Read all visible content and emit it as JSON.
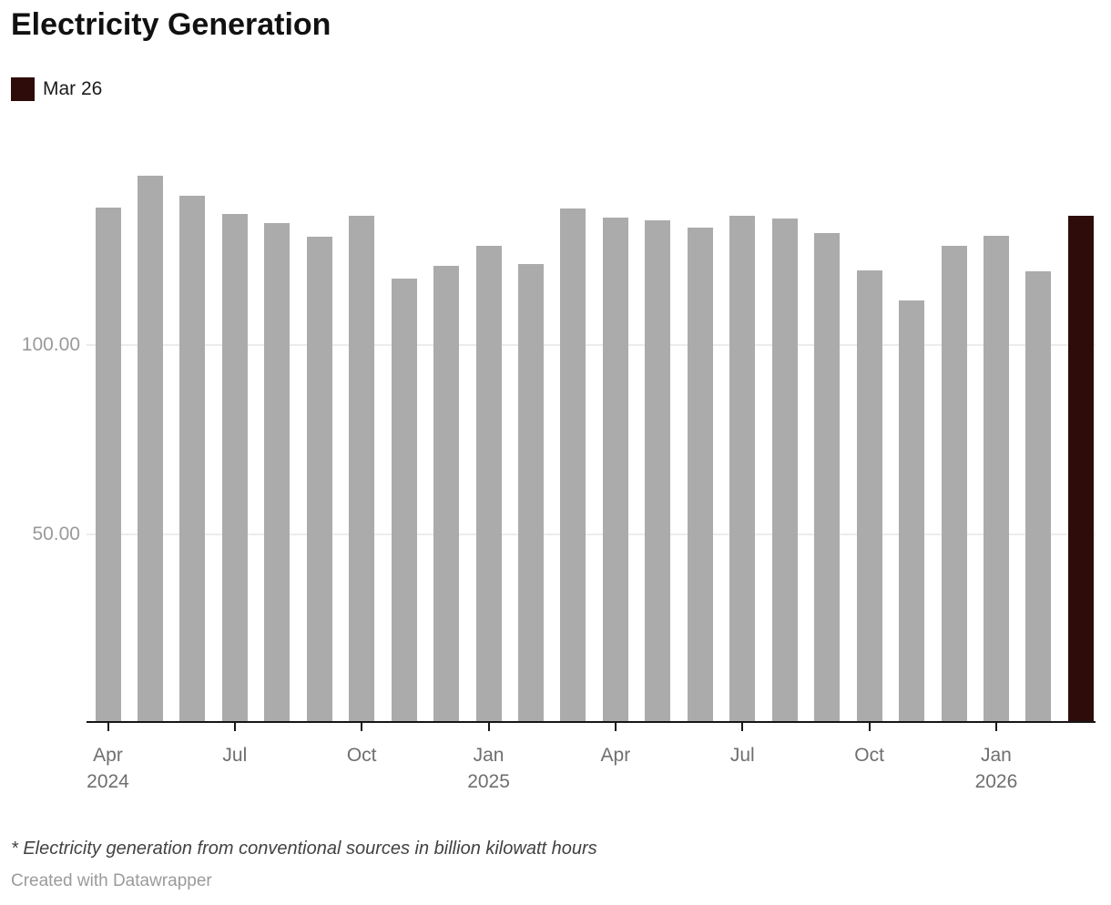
{
  "title": "Electricity Generation",
  "legend": {
    "label": "Mar 26"
  },
  "footnote": "* Electricity generation from conventional sources in billion kilowatt hours",
  "attribution": "Created with Datawrapper",
  "colors": {
    "bar": "#ababab",
    "highlight": "#2e0c09",
    "gridline": "#ececec",
    "axis": "#161616",
    "y_label": "#9a9a9a",
    "x_label": "#6f6f6f"
  },
  "chart_data": {
    "type": "bar",
    "title": "Electricity Generation",
    "categories": [
      "Apr 2024",
      "May 2024",
      "Jun 2024",
      "Jul 2024",
      "Aug 2024",
      "Sep 2024",
      "Oct 2024",
      "Nov 2024",
      "Dec 2024",
      "Jan 2025",
      "Feb 2025",
      "Mar 2025",
      "Apr 2025",
      "May 2025",
      "Jun 2025",
      "Jul 2025",
      "Aug 2025",
      "Sep 2025",
      "Oct 2025",
      "Nov 2025",
      "Dec 2025",
      "Jan 2026",
      "Feb 2026",
      "Mar 2026"
    ],
    "values": [
      136.2,
      144.6,
      139.4,
      134.6,
      132.2,
      128.5,
      134.1,
      117.5,
      120.8,
      126.2,
      121.4,
      136.1,
      133.7,
      132.9,
      131.1,
      134.1,
      133.5,
      129.6,
      119.8,
      111.7,
      126.2,
      128.8,
      119.5,
      134.1
    ],
    "highlight_index": 23,
    "highlight_label": "Mar 26",
    "xlabel": "",
    "ylabel": "",
    "ylim": [
      0,
      150
    ],
    "grid": "horizontal",
    "legend_position": "top-left",
    "y_axis": {
      "ticks": [
        {
          "label": "50.00",
          "value": 50
        },
        {
          "label": "100.00",
          "value": 100
        }
      ]
    },
    "x_axis": {
      "ticks": [
        {
          "index": 0,
          "line1": "Apr",
          "line2": "2024"
        },
        {
          "index": 3,
          "line1": "Jul"
        },
        {
          "index": 6,
          "line1": "Oct"
        },
        {
          "index": 9,
          "line1": "Jan",
          "line2": "2025"
        },
        {
          "index": 12,
          "line1": "Apr"
        },
        {
          "index": 15,
          "line1": "Jul"
        },
        {
          "index": 18,
          "line1": "Oct"
        },
        {
          "index": 21,
          "line1": "Jan",
          "line2": "2026"
        }
      ]
    }
  }
}
